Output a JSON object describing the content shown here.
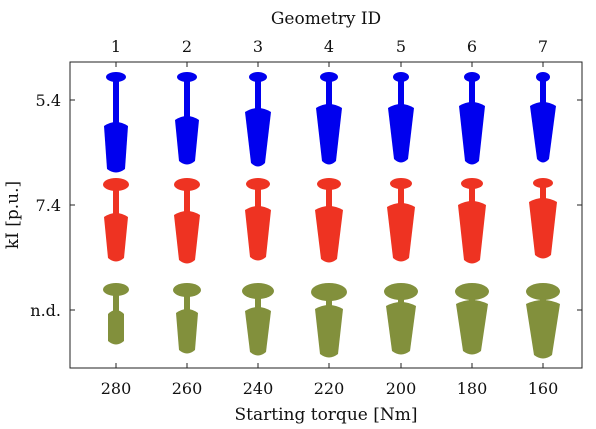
{
  "chart_data": {
    "type": "scatter",
    "title": "",
    "xlabel": "Starting torque [Nm]",
    "x2label": "Geometry ID",
    "ylabel": "kI [p.u.]",
    "x_ticks": [
      "280",
      "260",
      "240",
      "220",
      "200",
      "180",
      "160"
    ],
    "x2_ticks": [
      "1",
      "2",
      "3",
      "4",
      "5",
      "6",
      "7"
    ],
    "y_ticks": [
      "5.4",
      "7.4",
      "n.d."
    ],
    "grid": false,
    "legend": "none",
    "rows": [
      {
        "kI": "5.4",
        "color": "#0000ee",
        "geometries": [
          {
            "id": "1",
            "torque": 280,
            "top_width": 20,
            "neck_len": 40,
            "bottom_top_width": 24,
            "bottom_bottom_width": 18,
            "bottom_len": 50
          },
          {
            "id": "2",
            "torque": 260,
            "top_width": 20,
            "neck_len": 34,
            "bottom_top_width": 24,
            "bottom_bottom_width": 16,
            "bottom_len": 48
          },
          {
            "id": "3",
            "torque": 240,
            "top_width": 18,
            "neck_len": 26,
            "bottom_top_width": 26,
            "bottom_bottom_width": 14,
            "bottom_len": 58
          },
          {
            "id": "4",
            "torque": 220,
            "top_width": 18,
            "neck_len": 22,
            "bottom_top_width": 26,
            "bottom_bottom_width": 14,
            "bottom_len": 60
          },
          {
            "id": "5",
            "torque": 200,
            "top_width": 16,
            "neck_len": 22,
            "bottom_top_width": 26,
            "bottom_bottom_width": 14,
            "bottom_len": 58
          },
          {
            "id": "6",
            "torque": 180,
            "top_width": 16,
            "neck_len": 20,
            "bottom_top_width": 26,
            "bottom_bottom_width": 14,
            "bottom_len": 62
          },
          {
            "id": "7",
            "torque": 160,
            "top_width": 14,
            "neck_len": 20,
            "bottom_top_width": 26,
            "bottom_bottom_width": 12,
            "bottom_len": 60
          }
        ]
      },
      {
        "kI": "7.4",
        "color": "#ee3322",
        "geometries": [
          {
            "id": "1",
            "torque": 280,
            "top_width": 26,
            "neck_len": 22,
            "bottom_top_width": 24,
            "bottom_bottom_width": 16,
            "bottom_len": 48
          },
          {
            "id": "2",
            "torque": 260,
            "top_width": 26,
            "neck_len": 20,
            "bottom_top_width": 26,
            "bottom_bottom_width": 16,
            "bottom_len": 52
          },
          {
            "id": "3",
            "torque": 240,
            "top_width": 24,
            "neck_len": 16,
            "bottom_top_width": 26,
            "bottom_bottom_width": 16,
            "bottom_len": 54
          },
          {
            "id": "4",
            "torque": 220,
            "top_width": 24,
            "neck_len": 16,
            "bottom_top_width": 28,
            "bottom_bottom_width": 16,
            "bottom_len": 56
          },
          {
            "id": "5",
            "torque": 200,
            "top_width": 22,
            "neck_len": 14,
            "bottom_top_width": 28,
            "bottom_bottom_width": 16,
            "bottom_len": 58
          },
          {
            "id": "6",
            "torque": 180,
            "top_width": 22,
            "neck_len": 12,
            "bottom_top_width": 28,
            "bottom_bottom_width": 16,
            "bottom_len": 62
          },
          {
            "id": "7",
            "torque": 160,
            "top_width": 20,
            "neck_len": 10,
            "bottom_top_width": 28,
            "bottom_bottom_width": 16,
            "bottom_len": 60
          }
        ]
      },
      {
        "kI": "n.d.",
        "color": "#82903c",
        "geometries": [
          {
            "id": "1",
            "torque": 280,
            "top_width": 26,
            "neck_len": 14,
            "bottom_top_width": 16,
            "bottom_bottom_width": 16,
            "bottom_len": 34
          },
          {
            "id": "2",
            "torque": 260,
            "top_width": 28,
            "neck_len": 12,
            "bottom_top_width": 22,
            "bottom_bottom_width": 16,
            "bottom_len": 44
          },
          {
            "id": "3",
            "torque": 240,
            "top_width": 32,
            "neck_len": 8,
            "bottom_top_width": 26,
            "bottom_bottom_width": 16,
            "bottom_len": 48
          },
          {
            "id": "4",
            "torque": 220,
            "top_width": 36,
            "neck_len": 4,
            "bottom_top_width": 28,
            "bottom_bottom_width": 18,
            "bottom_len": 52
          },
          {
            "id": "5",
            "torque": 200,
            "top_width": 34,
            "neck_len": 2,
            "bottom_top_width": 30,
            "bottom_bottom_width": 18,
            "bottom_len": 52
          },
          {
            "id": "6",
            "torque": 180,
            "top_width": 34,
            "neck_len": 0,
            "bottom_top_width": 32,
            "bottom_bottom_width": 18,
            "bottom_len": 54
          },
          {
            "id": "7",
            "torque": 160,
            "top_width": 34,
            "neck_len": 0,
            "bottom_top_width": 34,
            "bottom_bottom_width": 18,
            "bottom_len": 58
          }
        ]
      }
    ]
  }
}
